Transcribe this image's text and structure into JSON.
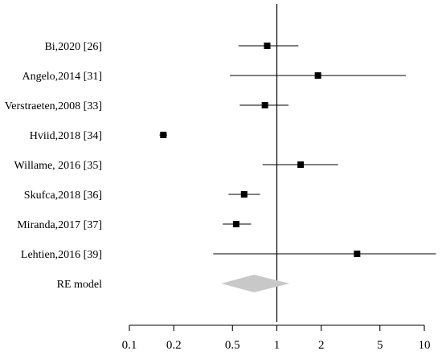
{
  "chart_data": {
    "type": "forest",
    "x_scale": "log",
    "xlim": [
      0.1,
      10
    ],
    "x_ticks": [
      0.1,
      0.2,
      0.5,
      1,
      2,
      5,
      10
    ],
    "x_tick_labels": [
      "0.1",
      "0.2",
      "0.5",
      "1",
      "2",
      "5",
      "10"
    ],
    "reference_line": 1,
    "studies": [
      {
        "label": "Bi,2020 [26]",
        "estimate": 0.86,
        "ci_low": 0.55,
        "ci_high": 1.4
      },
      {
        "label": "Angelo,2014 [31]",
        "estimate": 1.9,
        "ci_low": 0.48,
        "ci_high": 7.5
      },
      {
        "label": "Verstraeten,2008 [33]",
        "estimate": 0.83,
        "ci_low": 0.56,
        "ci_high": 1.2
      },
      {
        "label": "Hviid,2018 [34]",
        "estimate": 0.17,
        "ci_low": 0.16,
        "ci_high": 0.18
      },
      {
        "label": "Willame, 2016 [35]",
        "estimate": 1.45,
        "ci_low": 0.8,
        "ci_high": 2.6
      },
      {
        "label": "Skufca,2018 [36]",
        "estimate": 0.6,
        "ci_low": 0.47,
        "ci_high": 0.77
      },
      {
        "label": "Miranda,2017 [37]",
        "estimate": 0.53,
        "ci_low": 0.43,
        "ci_high": 0.67
      },
      {
        "label": "Lehtien,2016 [39]",
        "estimate": 3.5,
        "ci_low": 0.37,
        "ci_high": 12
      }
    ],
    "summary": {
      "label": "RE model",
      "estimate": 0.7,
      "ci_low": 0.42,
      "ci_high": 1.22
    },
    "colors": {
      "marker": "#000000",
      "line": "#000000",
      "summary": "#c8c8c8"
    }
  }
}
